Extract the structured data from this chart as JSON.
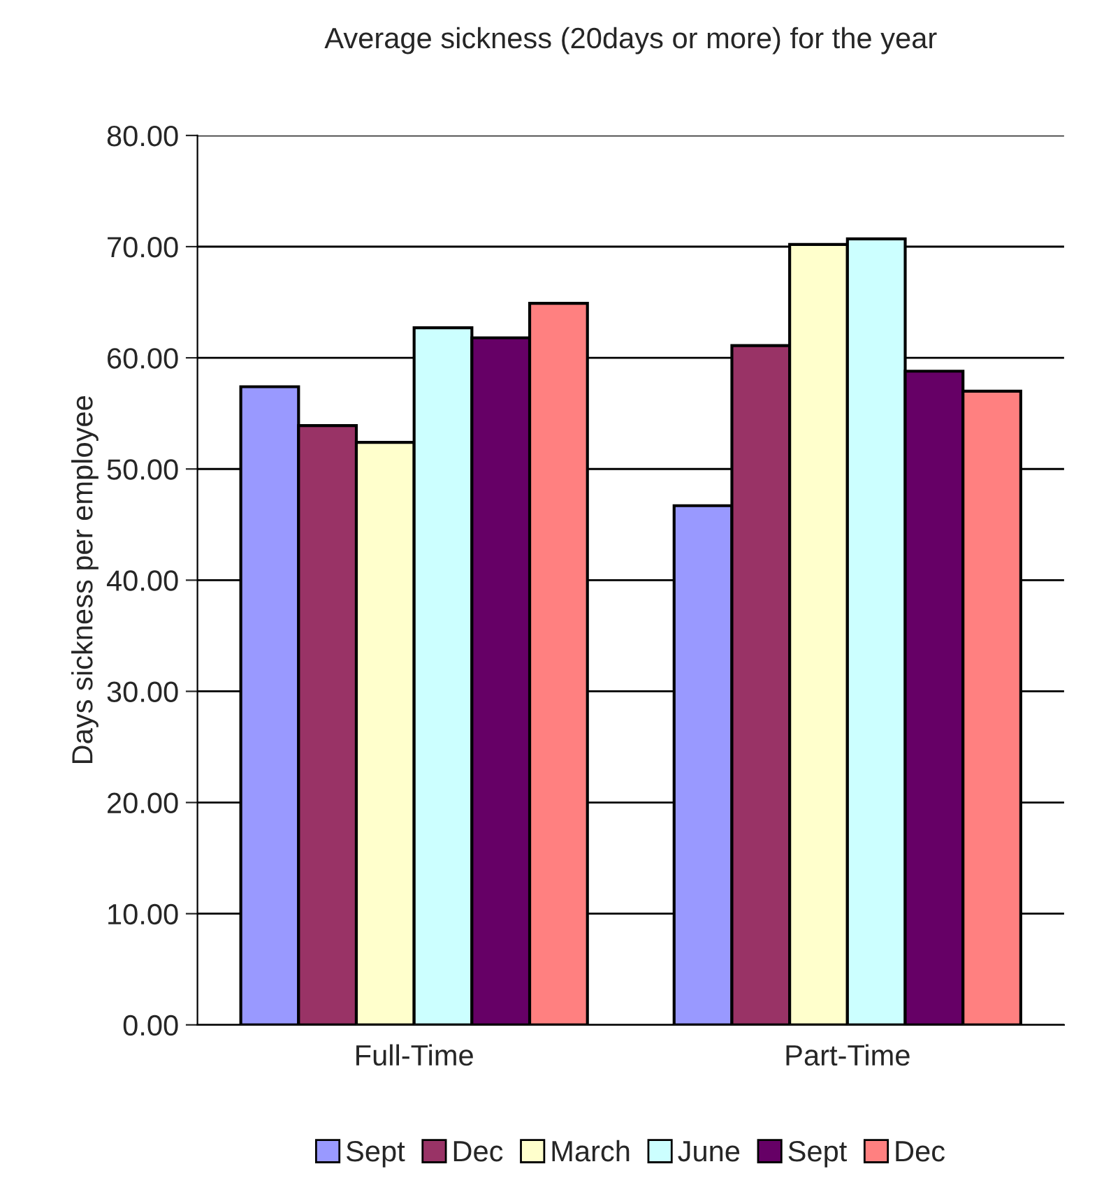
{
  "chart_data": {
    "type": "bar",
    "title": "Average sickness (20days or more) for the year",
    "ylabel": "Days sickness per employee",
    "categories": [
      "Full-Time",
      "Part-Time"
    ],
    "series": [
      {
        "name": "Sept",
        "color": "#9999ff",
        "values": [
          57.4,
          46.7
        ]
      },
      {
        "name": "Dec",
        "color": "#993366",
        "values": [
          53.9,
          61.1
        ]
      },
      {
        "name": "March",
        "color": "#ffffcc",
        "values": [
          52.4,
          70.2
        ]
      },
      {
        "name": "June",
        "color": "#ccffff",
        "values": [
          62.7,
          70.7
        ]
      },
      {
        "name": "Sept",
        "color": "#660066",
        "values": [
          61.8,
          58.8
        ]
      },
      {
        "name": "Dec",
        "color": "#ff8080",
        "values": [
          64.9,
          57.0
        ]
      }
    ],
    "ylim": [
      0,
      80
    ],
    "yticks": [
      {
        "value": 0,
        "label": "0.00"
      },
      {
        "value": 10,
        "label": "10.00"
      },
      {
        "value": 20,
        "label": "20.00"
      },
      {
        "value": 30,
        "label": "30.00"
      },
      {
        "value": 40,
        "label": "40.00"
      },
      {
        "value": 50,
        "label": "50.00"
      },
      {
        "value": 60,
        "label": "60.00"
      },
      {
        "value": 70,
        "label": "70.00"
      },
      {
        "value": 80,
        "label": "80.00"
      }
    ],
    "grid": "y",
    "legend": "bottom"
  }
}
